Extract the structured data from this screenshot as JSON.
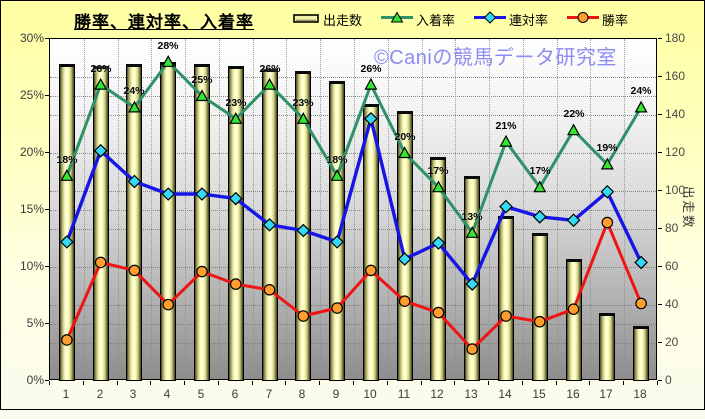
{
  "title": "勝率、連対率、入着率",
  "watermark": {
    "text": "©Caniの競馬データ研究室",
    "color": "#8b8ef0"
  },
  "legend": {
    "items": [
      {
        "label": "出走数",
        "marker": "bar"
      },
      {
        "label": "入着率",
        "marker": "triangle"
      },
      {
        "label": "連対率",
        "marker": "diamond"
      },
      {
        "label": "勝率",
        "marker": "circle"
      }
    ]
  },
  "colors": {
    "background_top": "#ffffa2",
    "background_bottom": "#fbfbee",
    "bar_fill": "#ffffc8",
    "bar_edge": "#3a3a1e",
    "line_green": "#2f9168",
    "marker_green": "#33e633",
    "line_blue": "#1515e6",
    "marker_cyan": "#35d8f5",
    "line_red": "#ee1414",
    "marker_orange": "#ff9d2e",
    "marker_outline": "#000000",
    "plot_gradient_top": "#ffffff",
    "plot_gradient_bottom": "#8d8d8d"
  },
  "chart_data": {
    "type": "combo bar+line",
    "categories": [
      "1",
      "2",
      "3",
      "4",
      "5",
      "6",
      "7",
      "8",
      "9",
      "10",
      "11",
      "12",
      "13",
      "14",
      "15",
      "16",
      "17",
      "18"
    ],
    "series": [
      {
        "name": "出走数",
        "type": "bar",
        "axis": "right",
        "values": [
          167,
          166,
          167,
          168,
          167,
          166,
          164,
          163,
          158,
          146,
          142,
          118,
          108,
          87,
          78,
          64,
          36,
          29
        ]
      },
      {
        "name": "入着率",
        "type": "line",
        "axis": "left",
        "values_pct": [
          18,
          26,
          24,
          28,
          25,
          23,
          26,
          23,
          18,
          26,
          20,
          17,
          13,
          21,
          17,
          22,
          19,
          24
        ],
        "data_labels": [
          "18%",
          "26%",
          "24%",
          "28%",
          "25%",
          "23%",
          "26%",
          "23%",
          "18%",
          "26%",
          "20%",
          "17%",
          "13%",
          "21%",
          "17%",
          "22%",
          "19%",
          "24%"
        ]
      },
      {
        "name": "連対率",
        "type": "line",
        "axis": "left",
        "values_pct": [
          12.2,
          20.2,
          17.5,
          16.4,
          16.4,
          16.0,
          13.7,
          13.2,
          12.2,
          23.0,
          10.7,
          12.1,
          8.5,
          15.3,
          14.4,
          14.1,
          16.6,
          10.4
        ]
      },
      {
        "name": "勝率",
        "type": "line",
        "axis": "left",
        "values_pct": [
          3.6,
          10.4,
          9.7,
          6.7,
          9.6,
          8.5,
          8.0,
          5.7,
          6.4,
          9.7,
          7.0,
          6.0,
          2.8,
          5.7,
          5.2,
          6.3,
          13.9,
          6.8
        ]
      }
    ],
    "left_axis": {
      "tick_labels": [
        "30%",
        "25%",
        "20%",
        "15%",
        "10%",
        "5%",
        "0%"
      ],
      "min": 0,
      "max": 30,
      "step": 5
    },
    "right_axis": {
      "title": "出走数",
      "tick_labels": [
        "180",
        "160",
        "140",
        "120",
        "100",
        "80",
        "60",
        "40",
        "20",
        "0"
      ],
      "min": 0,
      "max": 180,
      "step": 20
    },
    "x_axis": {
      "tick_labels": [
        "1",
        "2",
        "3",
        "4",
        "5",
        "6",
        "7",
        "8",
        "9",
        "10",
        "11",
        "12",
        "13",
        "14",
        "15",
        "16",
        "17",
        "18"
      ]
    },
    "grid": "horizontal dotted at both axes' major steps, vertical dotted at category boundaries",
    "legend_position": "top"
  }
}
